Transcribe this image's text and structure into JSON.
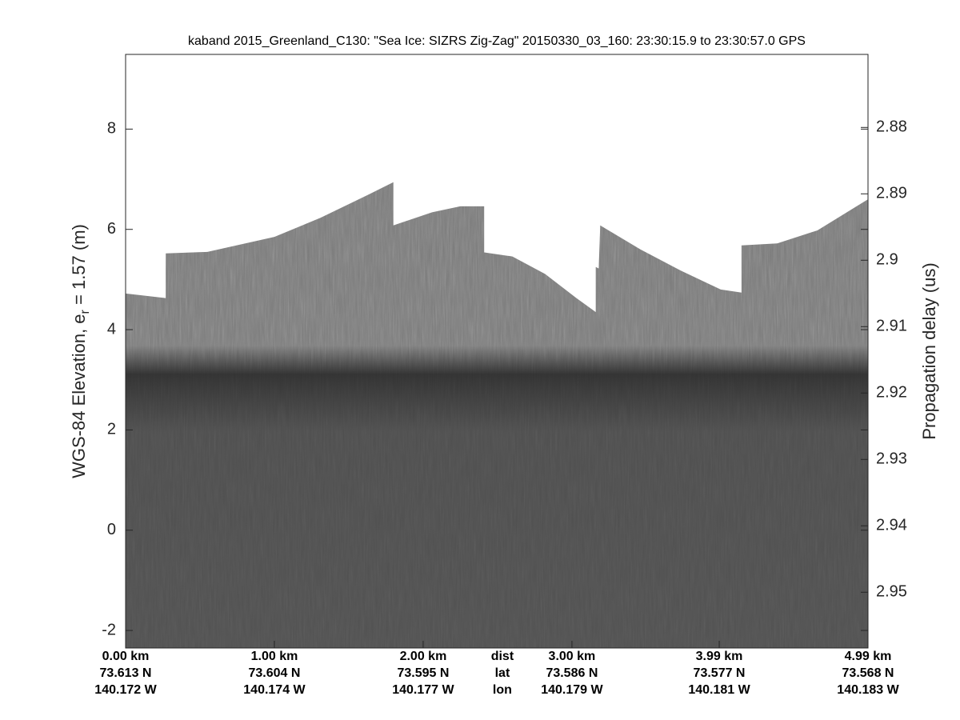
{
  "chart_data": {
    "type": "echogram",
    "title": "kaband 2015_Greenland_C130: \"Sea Ice: SIZRS Zig-Zag\"  20150330_03_160: 23:30:15.9 to 23:30:57.0 GPS",
    "ylabel": "WGS-84 Elevation, e",
    "ylabel_sub": "r",
    "ylabel_end": " = 1.57 (m)",
    "y2label": "Propagation delay (us)",
    "xlim": [
      0,
      4.99
    ],
    "xticks": [
      {
        "value": 0,
        "label": "0.00 km"
      },
      {
        "value": 1.0,
        "label": "1.00 km"
      },
      {
        "value": 2.0,
        "label": "2.00 km"
      },
      {
        "value": 3.0,
        "label": "3.00 km"
      },
      {
        "value": 3.99,
        "label": "3.99 km"
      },
      {
        "value": 4.99,
        "label": "4.99 km"
      }
    ],
    "lat_labels": [
      "73.613 N",
      "73.604 N",
      "73.595 N",
      "73.586 N",
      "73.577 N",
      "73.568 N"
    ],
    "lon_labels": [
      "140.172 W",
      "140.174 W",
      "140.177 W",
      "140.179 W",
      "140.181 W",
      "140.183 W"
    ],
    "row_labels": [
      "dist",
      "lat",
      "lon"
    ],
    "ylim": [
      -2.35,
      9.49
    ],
    "yticks": [
      -2,
      0,
      2,
      4,
      6,
      8
    ],
    "y2lim": [
      2.9584,
      2.869
    ],
    "y2ticks": [
      2.88,
      2.89,
      2.9,
      2.91,
      2.92,
      2.93,
      2.94,
      2.95
    ],
    "series": [
      {
        "name": "surface",
        "color": "#7d7d7d",
        "x": [
          0.0,
          0.27,
          0.27,
          0.55,
          1.0,
          1.31,
          1.63,
          1.8,
          1.8,
          2.06,
          2.25,
          2.41,
          2.41,
          2.6,
          2.82,
          3.03,
          3.16,
          3.16,
          3.18,
          3.19,
          3.46,
          3.73,
          4.0,
          4.14,
          4.14,
          4.38,
          4.65,
          4.99
        ],
        "values": [
          4.72,
          4.63,
          5.52,
          5.55,
          5.85,
          6.23,
          6.69,
          6.94,
          6.08,
          6.34,
          6.46,
          6.46,
          5.54,
          5.46,
          5.11,
          4.63,
          4.35,
          5.25,
          5.22,
          6.08,
          5.6,
          5.18,
          4.8,
          4.74,
          5.68,
          5.72,
          5.98,
          6.6
        ]
      }
    ]
  }
}
